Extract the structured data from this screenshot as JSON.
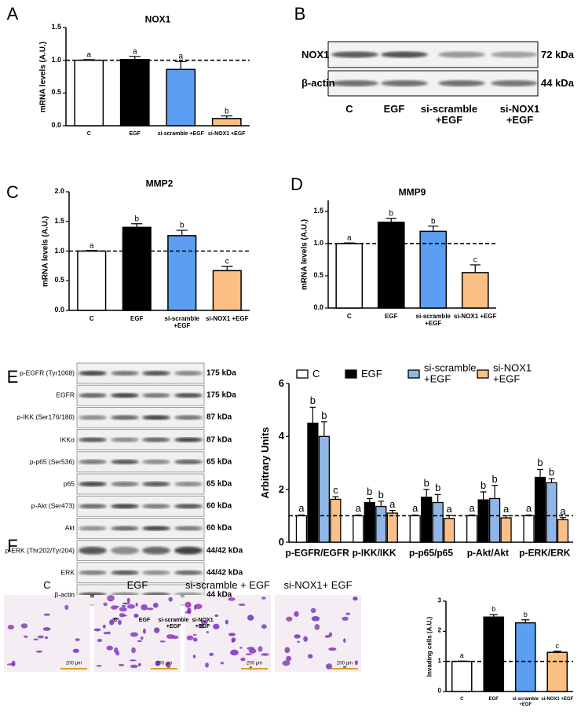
{
  "panels": [
    "A",
    "B",
    "C",
    "D",
    "E",
    "F"
  ],
  "chart_data": [
    {
      "type": "bar",
      "title": "NOX1",
      "y_label": "mRNA levels (A.U.)",
      "categories": [
        "C",
        "EGF",
        "si-scramble +EGF",
        "si-NOX1 +EGF"
      ],
      "values": [
        1.0,
        1.01,
        0.86,
        0.11
      ],
      "errors": [
        0.01,
        0.05,
        0.12,
        0.04
      ],
      "letters": [
        "a",
        "a",
        "a",
        "b"
      ],
      "colors": [
        "#ffffff",
        "#000000",
        "#5b9ef2",
        "#fbbf85"
      ],
      "ylim": [
        0,
        1.5
      ],
      "yticks": [
        {
          "value": 0,
          "label": "0.0"
        },
        0.5,
        {
          "value": 1,
          "label": "1.0"
        },
        1.5
      ],
      "ref_line": 1
    },
    {
      "type": "bar",
      "title": "MMP2",
      "y_label": "mRNA levels (A.U.)",
      "categories": [
        "C",
        "EGF",
        "si-scramble +EGF",
        "si-NOX1 +EGF"
      ],
      "values": [
        1.0,
        1.4,
        1.26,
        0.67
      ],
      "errors": [
        0.01,
        0.06,
        0.09,
        0.07
      ],
      "letters": [
        "a",
        "b",
        "b",
        "c"
      ],
      "colors": [
        "#ffffff",
        "#000000",
        "#5b9ef2",
        "#fbbf85"
      ],
      "ylim": [
        0,
        2
      ],
      "yticks": [
        {
          "value": 0,
          "label": "0.0"
        },
        0.5,
        {
          "value": 1,
          "label": "1.0"
        },
        1.5,
        {
          "value": 2,
          "label": "2.0"
        }
      ],
      "ref_line": 1
    },
    {
      "type": "bar",
      "title": "MMP9",
      "y_label": "mRNA levels (A.U.)",
      "categories": [
        "C",
        "EGF",
        "si-scramble +EGF",
        "si-NOX1 +EGF"
      ],
      "values": [
        1.0,
        1.33,
        1.19,
        0.55
      ],
      "errors": [
        0.01,
        0.06,
        0.08,
        0.12
      ],
      "letters": [
        "a",
        "b",
        "b",
        "c"
      ],
      "colors": [
        "#ffffff",
        "#000000",
        "#5b9ef2",
        "#fbbf85"
      ],
      "ylim": [
        0,
        1.67
      ],
      "yticks": [
        {
          "value": 0,
          "label": "0.0"
        },
        0.5,
        {
          "value": 1,
          "label": "1.0"
        },
        1.5
      ],
      "ref_line": 1
    },
    {
      "type": "grouped_bar",
      "y_label": "Arbitrary Units",
      "categories": [
        "p-EGFR/EGFR",
        "p-IKK/IKK",
        "p-p65/p65",
        "p-Akt/Akt",
        "p-ERK/ERK"
      ],
      "series": [
        {
          "name": "C",
          "color": "#ffffff",
          "values": [
            1.0,
            1.0,
            1.0,
            1.0,
            1.0
          ],
          "errors": [
            0.03,
            0.03,
            0.03,
            0.03,
            0.03
          ],
          "letters": [
            "a",
            "a",
            "a",
            "a",
            "a"
          ]
        },
        {
          "name": "EGF",
          "color": "#000000",
          "values": [
            4.5,
            1.5,
            1.7,
            1.6,
            2.45
          ],
          "errors": [
            0.6,
            0.15,
            0.3,
            0.3,
            0.3
          ],
          "letters": [
            "b",
            "b",
            "b",
            "b",
            "b"
          ]
        },
        {
          "name": "si-scramble +EGF",
          "color": "#8fb6e6",
          "values": [
            4.0,
            1.35,
            1.5,
            1.65,
            2.25
          ],
          "errors": [
            0.55,
            0.2,
            0.3,
            0.5,
            0.15
          ],
          "letters": [
            "b",
            "b",
            "b",
            "b",
            "b"
          ]
        },
        {
          "name": "si-NOX1 +EGF",
          "color": "#fbc08a",
          "values": [
            1.62,
            1.1,
            0.9,
            0.92,
            0.85
          ],
          "errors": [
            0.1,
            0.1,
            0.12,
            0.08,
            0.08
          ],
          "letters": [
            "c",
            "a",
            "a",
            "a",
            "a"
          ]
        }
      ],
      "ylim": [
        0,
        6
      ],
      "yticks": [
        0,
        2,
        4,
        6
      ],
      "ref_line": 1,
      "legend": "top"
    },
    {
      "type": "bar",
      "y_label": "Invading cells (A.U.)",
      "categories": [
        "C",
        "EGF",
        "si-scramble +EGF",
        "si-NOX1 +EGF"
      ],
      "values": [
        1.0,
        2.47,
        2.28,
        1.3
      ],
      "errors": [
        0.01,
        0.08,
        0.1,
        0.04
      ],
      "letters": [
        "a",
        "b",
        "b",
        "c"
      ],
      "colors": [
        "#ffffff",
        "#000000",
        "#5b9ef2",
        "#fbbf85"
      ],
      "ylim": [
        0,
        3
      ],
      "yticks": [
        0,
        1,
        2,
        3
      ],
      "ref_line": 1
    }
  ],
  "blots": [
    {
      "rows": [
        {
          "label": "NOX1",
          "size": "72 kDa"
        },
        {
          "label": "β-actin",
          "size": "44 kDa"
        }
      ],
      "lanes": [
        "C",
        "EGF",
        "si-scramble +EGF",
        "si-NOX1 +EGF"
      ]
    },
    {
      "rows": [
        {
          "label": "p-EGFR (Tyr1068)",
          "size": "175 kDa"
        },
        {
          "label": "EGFR",
          "size": "175 kDa"
        },
        {
          "label": "p-IKK (Ser176/180)",
          "size": "87 kDa"
        },
        {
          "label": "IKKα",
          "size": "87 kDa"
        },
        {
          "label": "p-p65 (Ser536)",
          "size": "65 kDa"
        },
        {
          "label": "p65",
          "size": "65 kDa"
        },
        {
          "label": "p-Akt (Ser473)",
          "size": "60 kDa"
        },
        {
          "label": "Akt",
          "size": "60 kDa"
        },
        {
          "label": "p-ERK (Thr202/Tyr204)",
          "size": "44/42 kDa"
        },
        {
          "label": "ERK",
          "size": "44/42 kDa"
        },
        {
          "label": "β-actin",
          "size": "44 kDa"
        }
      ],
      "lanes": [
        "C",
        "EGF",
        "si-scramble +EGF",
        "si-NOX1 +EGF"
      ]
    }
  ],
  "micrographs": {
    "labels": [
      "C",
      "EGF",
      "si-scramble + EGF",
      "si-NOX1+ EGF"
    ],
    "scale_bar": "200 µm"
  }
}
